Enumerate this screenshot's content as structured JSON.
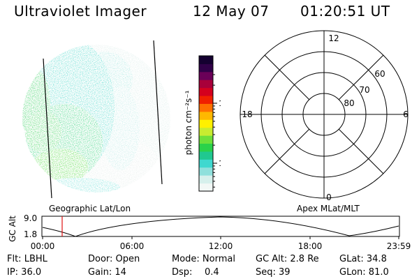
{
  "header": {
    "instrument": "Ultraviolet Imager",
    "date": "12 May 07",
    "time": "01:20:51 UT"
  },
  "colorbar": {
    "unit_label": "photon cm⁻²s⁻¹",
    "ticks": [
      {
        "label": "100",
        "value": 100
      },
      {
        "label": "10",
        "value": 10
      }
    ],
    "colors": [
      "#f2f8f6",
      "#d6f0ec",
      "#8fe0dc",
      "#3fd8cf",
      "#20c890",
      "#2ad24a",
      "#6ee03a",
      "#c8ec30",
      "#fff000",
      "#ffb800",
      "#ff7000",
      "#f02000",
      "#d4001e",
      "#a8003a",
      "#6a0058",
      "#300048",
      "#140030"
    ]
  },
  "polar_plot": {
    "hour_labels": [
      {
        "label": "12",
        "angle": 0
      },
      {
        "label": "6",
        "angle": 90
      },
      {
        "label": "0",
        "angle": 180
      },
      {
        "label": "18",
        "angle": 270
      }
    ],
    "lat_labels": [
      "60",
      "70",
      "80"
    ],
    "left_caption": "Geographic Lat/Lon",
    "right_caption": "Apex MLat/MLT"
  },
  "timeline": {
    "axis_label": "GC Alt",
    "y_ticks": [
      "9.0",
      "1.8"
    ],
    "x_ticks": [
      "00:00",
      "06:00",
      "12:00",
      "18:00",
      "23:59"
    ]
  },
  "info": {
    "flt": "Flt: LBHL",
    "ip": "IP: 36.0",
    "door": "Door: Open",
    "gain": "Gain: 14",
    "mode": "Mode: Normal",
    "dsp_label": "Dsp:",
    "dsp_value": "0.4",
    "gcalt": "GC Alt: 2.8 Re",
    "seq": "Seq: 39",
    "glat": "GLat: 34.8",
    "glon": "GLon: 81.0"
  }
}
